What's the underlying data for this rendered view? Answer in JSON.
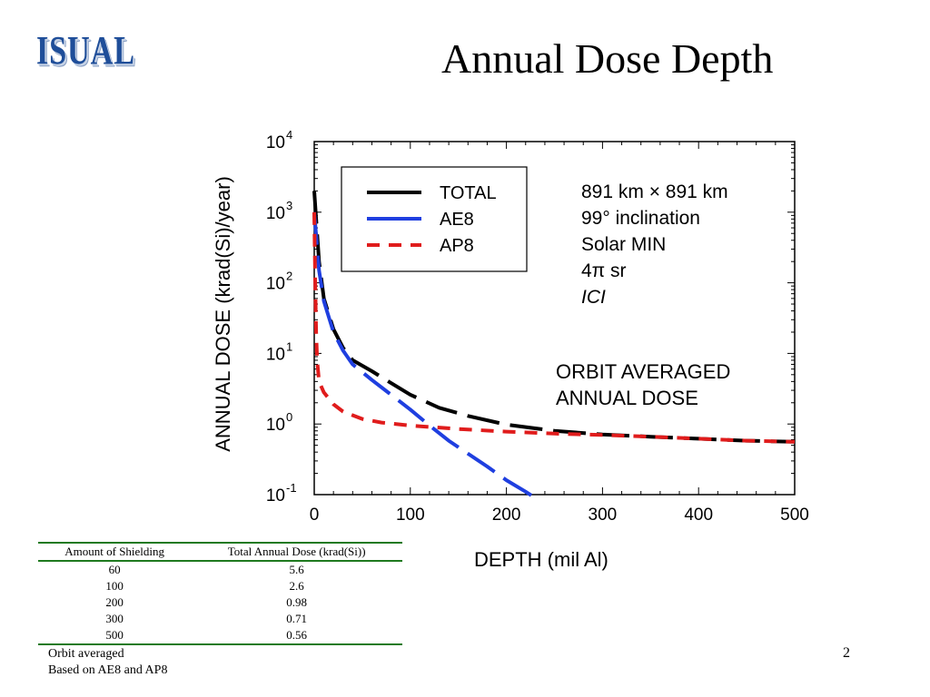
{
  "slide": {
    "logo_text": "ISUAL",
    "title": "Annual Dose Depth",
    "page_number": "2"
  },
  "chart_data": {
    "type": "line",
    "title": "",
    "xlabel": "DEPTH (mil Al)",
    "ylabel": "ANNUAL DOSE (krad(Si)/year)",
    "xlim": [
      0,
      500
    ],
    "ylim": [
      0.1,
      10000
    ],
    "yscale": "log",
    "x_ticks": [
      "0",
      "100",
      "200",
      "300",
      "400",
      "500"
    ],
    "y_ticks": [
      {
        "base": "10",
        "exp": "4"
      },
      {
        "base": "10",
        "exp": "3"
      },
      {
        "base": "10",
        "exp": "2"
      },
      {
        "base": "10",
        "exp": "1"
      },
      {
        "base": "10",
        "exp": "0"
      },
      {
        "base": "10",
        "exp": "-1"
      }
    ],
    "grid": false,
    "legend_position": "top-left",
    "series": [
      {
        "name": "TOTAL",
        "color": "#000000",
        "style": "long-dash",
        "x": [
          0,
          5,
          10,
          20,
          30,
          40,
          60,
          80,
          100,
          130,
          160,
          200,
          250,
          300,
          350,
          400,
          450,
          500
        ],
        "y": [
          2000,
          200,
          60,
          22,
          12,
          8,
          5.6,
          3.8,
          2.6,
          1.7,
          1.3,
          0.98,
          0.8,
          0.71,
          0.66,
          0.62,
          0.58,
          0.56
        ]
      },
      {
        "name": "AE8",
        "color": "#1f3fe0",
        "style": "long-dash",
        "x": [
          0,
          5,
          10,
          20,
          30,
          40,
          60,
          80,
          100,
          120,
          140,
          160,
          180,
          200,
          220,
          230
        ],
        "y": [
          1000,
          150,
          55,
          20,
          11,
          7,
          4.2,
          2.6,
          1.6,
          0.95,
          0.58,
          0.38,
          0.25,
          0.16,
          0.11,
          0.09
        ]
      },
      {
        "name": "AP8",
        "color": "#e01c1c",
        "style": "short-dash",
        "x": [
          0,
          1,
          2,
          3,
          5,
          10,
          20,
          30,
          50,
          70,
          100,
          150,
          200,
          250,
          300,
          350,
          400,
          450,
          500
        ],
        "y": [
          1000,
          100,
          20,
          8,
          4,
          2.8,
          1.9,
          1.5,
          1.18,
          1.05,
          0.95,
          0.85,
          0.78,
          0.73,
          0.7,
          0.66,
          0.62,
          0.58,
          0.56
        ]
      }
    ],
    "annotation_lines": [
      "891 km × 891 km",
      "99° inclination",
      "Solar MIN",
      "4π sr",
      "ICI"
    ],
    "note_lines": [
      "ORBIT AVERAGED",
      "ANNUAL DOSE"
    ]
  },
  "table": {
    "headers": [
      "Amount of Shielding",
      "Total Annual Dose (krad(Si))"
    ],
    "rows": [
      [
        "60",
        "5.6"
      ],
      [
        "100",
        "2.6"
      ],
      [
        "200",
        "0.98"
      ],
      [
        "300",
        "0.71"
      ],
      [
        "500",
        "0.56"
      ]
    ]
  },
  "notes": [
    "Orbit averaged",
    "Based on AE8 and AP8"
  ]
}
